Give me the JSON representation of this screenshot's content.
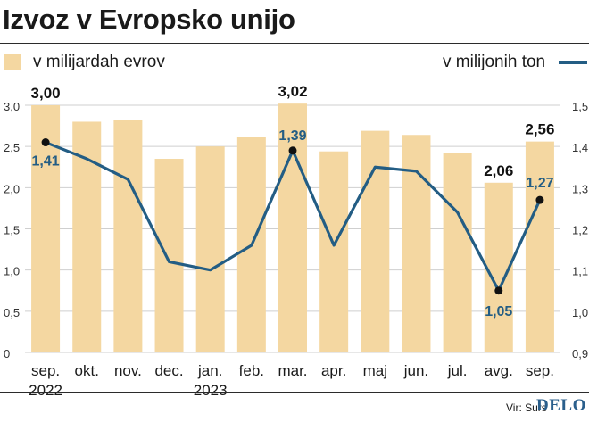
{
  "title": "Izvoz v Evropsko unijo",
  "legend": {
    "bars": "v milijardah evrov",
    "line": "v milijonih ton"
  },
  "source": "Vir: Surs",
  "logo": "DELO",
  "colors": {
    "bar": "#f4d7a1",
    "line": "#235d84",
    "marker": "#111111",
    "grid": "#cfcfcf"
  },
  "chart_data": {
    "type": "bar+line",
    "categories": [
      [
        "sep.",
        "2022"
      ],
      [
        "okt."
      ],
      [
        "nov."
      ],
      [
        "dec."
      ],
      [
        "jan.",
        "2023"
      ],
      [
        "feb."
      ],
      [
        "mar."
      ],
      [
        "apr."
      ],
      [
        "maj"
      ],
      [
        "jun."
      ],
      [
        "jul."
      ],
      [
        "avg."
      ],
      [
        "sep."
      ]
    ],
    "bars": {
      "name": "v milijardah evrov",
      "values": [
        3.0,
        2.8,
        2.82,
        2.35,
        2.5,
        2.62,
        3.02,
        2.44,
        2.69,
        2.64,
        2.42,
        2.06,
        2.56
      ],
      "labels": {
        "0": "3,00",
        "6": "3,02",
        "11": "2,06",
        "12": "2,56"
      }
    },
    "line": {
      "name": "v milijonih ton",
      "values": [
        1.41,
        1.37,
        1.32,
        1.12,
        1.1,
        1.16,
        1.39,
        1.16,
        1.35,
        1.34,
        1.24,
        1.05,
        1.27
      ],
      "labels": {
        "0": "1,41",
        "6": "1,39",
        "11": "1,05",
        "12": "1,27"
      },
      "markers": [
        0,
        6,
        11,
        12
      ]
    },
    "y_left": {
      "lim": [
        0,
        3.0
      ],
      "ticks": [
        "0",
        "0,5",
        "1,0",
        "1,5",
        "2,0",
        "2,5",
        "3,0"
      ],
      "values": [
        0,
        0.5,
        1.0,
        1.5,
        2.0,
        2.5,
        3.0
      ]
    },
    "y_right": {
      "lim": [
        0.9,
        1.5
      ],
      "ticks": [
        "0,9",
        "1,0",
        "1,1",
        "1,2",
        "1,3",
        "1,4",
        "1,5"
      ],
      "values": [
        0.9,
        1.0,
        1.1,
        1.2,
        1.3,
        1.4,
        1.5
      ]
    },
    "grid": true
  }
}
